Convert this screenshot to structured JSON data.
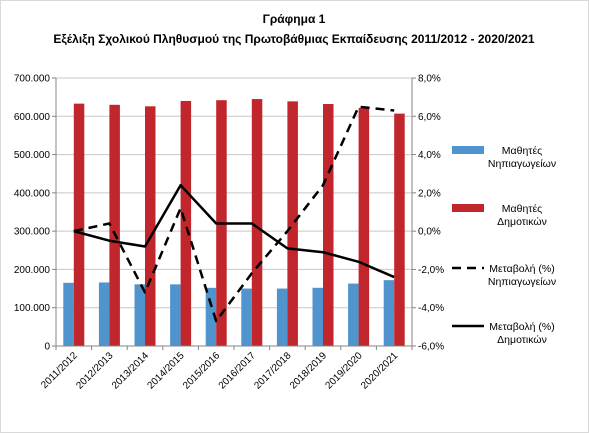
{
  "chart_data": {
    "type": "bar",
    "title": "Γράφημα 1",
    "subtitle": "Εξέλιξη Σχολικού Πληθυσμού της Πρωτοβάθμιας Εκπαίδευσης 2011/2012 - 2020/2021",
    "categories": [
      "2011/2012",
      "2012/2013",
      "2013/2014",
      "2014/2015",
      "2015/2016",
      "2016/2017",
      "2017/2018",
      "2018/2019",
      "2019/2020",
      "2020/2021"
    ],
    "ylim_left": [
      0,
      700000
    ],
    "yticks_left": [
      "0",
      "100.000",
      "200.000",
      "300.000",
      "400.000",
      "500.000",
      "600.000",
      "700.000"
    ],
    "ylim_right": [
      -6,
      8
    ],
    "yticks_right": [
      "-6,0%",
      "-4,0%",
      "-2,0%",
      "0,0%",
      "2,0%",
      "4,0%",
      "6,0%",
      "8,0%"
    ],
    "grid": true,
    "legend_position": "right",
    "series": [
      {
        "name": "Μαθητές Νηπιαγωγείων",
        "label_lines": [
          "Μαθητές",
          "Νηπιαγωγείων"
        ],
        "kind": "bar",
        "axis": "left",
        "color": "#4F94CD",
        "values": [
          165000,
          166000,
          161000,
          161000,
          152000,
          150000,
          150000,
          152000,
          163000,
          172000
        ]
      },
      {
        "name": "Μαθητές Δημοτικών",
        "label_lines": [
          "Μαθητές",
          "Δημοτικών"
        ],
        "kind": "bar",
        "axis": "left",
        "color": "#C0262B",
        "values": [
          633000,
          630000,
          626000,
          640000,
          642000,
          645000,
          639000,
          632000,
          622000,
          607000
        ]
      },
      {
        "name": "Μεταβολή (%) Νηπιαγωγείων",
        "label_lines": [
          "Μεταβολή (%)",
          "Νηπιαγωγείων"
        ],
        "kind": "line",
        "axis": "right",
        "color": "#000000",
        "dash": "dashed",
        "values": [
          0.0,
          0.4,
          -3.2,
          1.2,
          -4.7,
          -2.2,
          0.0,
          2.4,
          6.5,
          6.3
        ]
      },
      {
        "name": "Μεταβολή (%) Δημοτικών",
        "label_lines": [
          "Μεταβολή (%)",
          "Δημοτικών"
        ],
        "kind": "line",
        "axis": "right",
        "color": "#000000",
        "dash": "solid",
        "values": [
          0.0,
          -0.5,
          -0.8,
          2.4,
          0.4,
          0.4,
          -0.9,
          -1.1,
          -1.6,
          -2.4
        ]
      }
    ]
  }
}
